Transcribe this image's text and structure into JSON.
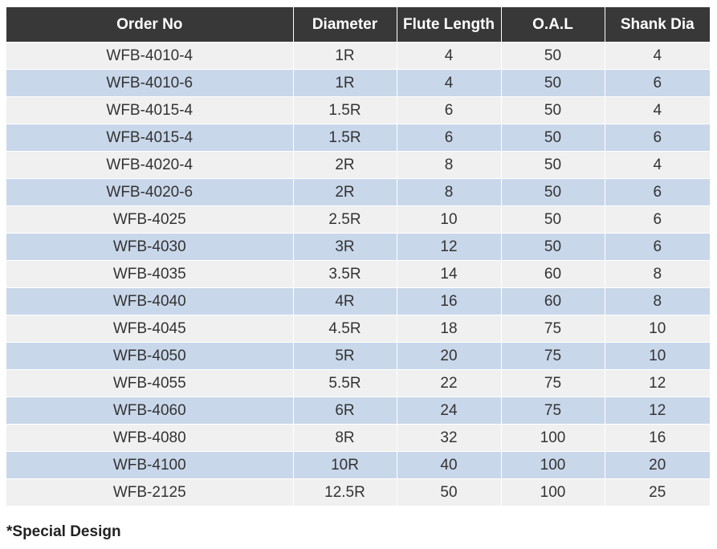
{
  "table": {
    "headers": [
      "Order No",
      "Diameter",
      "Flute Length",
      "O.A.L",
      "Shank Dia"
    ],
    "rows": [
      [
        "WFB-4010-4",
        "1R",
        "4",
        "50",
        "4"
      ],
      [
        "WFB-4010-6",
        "1R",
        "4",
        "50",
        "6"
      ],
      [
        "WFB-4015-4",
        "1.5R",
        "6",
        "50",
        "4"
      ],
      [
        "WFB-4015-4",
        "1.5R",
        "6",
        "50",
        "6"
      ],
      [
        "WFB-4020-4",
        "2R",
        "8",
        "50",
        "4"
      ],
      [
        "WFB-4020-6",
        "2R",
        "8",
        "50",
        "6"
      ],
      [
        "WFB-4025",
        "2.5R",
        "10",
        "50",
        "6"
      ],
      [
        "WFB-4030",
        "3R",
        "12",
        "50",
        "6"
      ],
      [
        "WFB-4035",
        "3.5R",
        "14",
        "60",
        "8"
      ],
      [
        "WFB-4040",
        "4R",
        "16",
        "60",
        "8"
      ],
      [
        "WFB-4045",
        "4.5R",
        "18",
        "75",
        "10"
      ],
      [
        "WFB-4050",
        "5R",
        "20",
        "75",
        "10"
      ],
      [
        "WFB-4055",
        "5.5R",
        "22",
        "75",
        "12"
      ],
      [
        "WFB-4060",
        "6R",
        "24",
        "75",
        "12"
      ],
      [
        "WFB-4080",
        "8R",
        "32",
        "100",
        "16"
      ],
      [
        "WFB-4100",
        "10R",
        "40",
        "100",
        "20"
      ],
      [
        "WFB-2125",
        "12.5R",
        "50",
        "100",
        "25"
      ]
    ]
  },
  "footnote": "*Special Design",
  "colors": {
    "header_bg": "#383838",
    "row_light": "#f0f0f0",
    "row_blue": "#c9d7ea"
  }
}
